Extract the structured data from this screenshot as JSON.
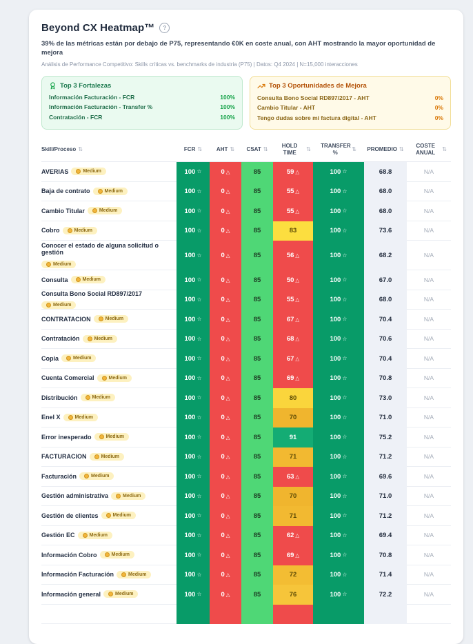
{
  "header": {
    "title": "Beyond CX Heatmap™",
    "help_icon": "?",
    "subtitle": "39% de las métricas están por debajo de P75, representando €0K en coste anual, con AHT mostrando la mayor oportunidad de mejora",
    "meta": "Análisis de Performance Competitivo: Skills críticas vs. benchmarks de industria (P75) | Datos: Q4 2024 | N=15,000 interacciones"
  },
  "strengths_panel": {
    "title": "Top 3 Fortalezas",
    "icon": "award-icon",
    "items": [
      {
        "label": "Información Facturación - FCR",
        "value": "100%"
      },
      {
        "label": "Información Facturación - Transfer %",
        "value": "100%"
      },
      {
        "label": "Contratación - FCR",
        "value": "100%"
      }
    ]
  },
  "opportunities_panel": {
    "title": "Top 3 Oportunidades de Mejora",
    "icon": "trending-up-icon",
    "items": [
      {
        "label": "Consulta Bono Social RD897/2017 - AHT",
        "value": "0%"
      },
      {
        "label": "Cambio Titular - AHT",
        "value": "0%"
      },
      {
        "label": "Tengo dudas sobre mi factura digital - AHT",
        "value": "0%"
      }
    ]
  },
  "table": {
    "columns": {
      "skill": "Skill/Proceso",
      "fcr": "FCR",
      "aht": "AHT",
      "csat": "CSAT",
      "hold": "HOLD TIME",
      "transfer": "TRANSFER %",
      "promedio": "PROMEDIO",
      "coste": "COSTE ANUAL"
    },
    "sort_icon": "⇅",
    "star_icon": "☆",
    "warn_icon": "△",
    "badge_label": "Medium",
    "colors": {
      "green_dark": "#089B68",
      "green_dark_fg": "#ffffff",
      "green_light": "#4FD776",
      "green_light_fg": "#1d3b24",
      "red": "#EF4B4B",
      "red_fg": "#ffffff",
      "yellow_fg": "#5C4A05",
      "promedio_bg": "#EEF1F7",
      "coste_bg": "#FFFFFF"
    },
    "rows": [
      {
        "skill": "AVERIAS",
        "fcr": "100",
        "aht": "0",
        "csat": "85",
        "hold": "59",
        "hold_bg": "#EF4B4B",
        "hold_fg": "#ffffff",
        "hold_warn": true,
        "transfer": "100",
        "promedio": "68.8",
        "coste": "N/A"
      },
      {
        "skill": "Baja de contrato",
        "fcr": "100",
        "aht": "0",
        "csat": "85",
        "hold": "55",
        "hold_bg": "#EF4B4B",
        "hold_fg": "#ffffff",
        "hold_warn": true,
        "transfer": "100",
        "promedio": "68.0",
        "coste": "N/A"
      },
      {
        "skill": "Cambio Titular",
        "fcr": "100",
        "aht": "0",
        "csat": "85",
        "hold": "55",
        "hold_bg": "#EF4B4B",
        "hold_fg": "#ffffff",
        "hold_warn": true,
        "transfer": "100",
        "promedio": "68.0",
        "coste": "N/A"
      },
      {
        "skill": "Cobro",
        "fcr": "100",
        "aht": "0",
        "csat": "85",
        "hold": "83",
        "hold_bg": "#FCDE3F",
        "hold_fg": "#5C4A05",
        "hold_warn": false,
        "transfer": "100",
        "promedio": "73.6",
        "coste": "N/A"
      },
      {
        "skill": "Conocer el estado de alguna solicitud o gestión",
        "tall": true,
        "fcr": "100",
        "aht": "0",
        "csat": "85",
        "hold": "56",
        "hold_bg": "#EF4B4B",
        "hold_fg": "#ffffff",
        "hold_warn": true,
        "transfer": "100",
        "promedio": "68.2",
        "coste": "N/A"
      },
      {
        "skill": "Consulta",
        "fcr": "100",
        "aht": "0",
        "csat": "85",
        "hold": "50",
        "hold_bg": "#EF4B4B",
        "hold_fg": "#ffffff",
        "hold_warn": true,
        "transfer": "100",
        "promedio": "67.0",
        "coste": "N/A"
      },
      {
        "skill": "Consulta Bono Social RD897/2017",
        "fcr": "100",
        "aht": "0",
        "csat": "85",
        "hold": "55",
        "hold_bg": "#EF4B4B",
        "hold_fg": "#ffffff",
        "hold_warn": true,
        "transfer": "100",
        "promedio": "68.0",
        "coste": "N/A"
      },
      {
        "skill": "CONTRATACION",
        "fcr": "100",
        "aht": "0",
        "csat": "85",
        "hold": "67",
        "hold_bg": "#EF4B4B",
        "hold_fg": "#ffffff",
        "hold_warn": true,
        "transfer": "100",
        "promedio": "70.4",
        "coste": "N/A"
      },
      {
        "skill": "Contratación",
        "fcr": "100",
        "aht": "0",
        "csat": "85",
        "hold": "68",
        "hold_bg": "#EF4B4B",
        "hold_fg": "#ffffff",
        "hold_warn": true,
        "transfer": "100",
        "promedio": "70.6",
        "coste": "N/A"
      },
      {
        "skill": "Copia",
        "fcr": "100",
        "aht": "0",
        "csat": "85",
        "hold": "67",
        "hold_bg": "#EF4B4B",
        "hold_fg": "#ffffff",
        "hold_warn": true,
        "transfer": "100",
        "promedio": "70.4",
        "coste": "N/A"
      },
      {
        "skill": "Cuenta Comercial",
        "fcr": "100",
        "aht": "0",
        "csat": "85",
        "hold": "69",
        "hold_bg": "#EF4B4B",
        "hold_fg": "#ffffff",
        "hold_warn": true,
        "transfer": "100",
        "promedio": "70.8",
        "coste": "N/A"
      },
      {
        "skill": "Distribución",
        "fcr": "100",
        "aht": "0",
        "csat": "85",
        "hold": "80",
        "hold_bg": "#FAD53C",
        "hold_fg": "#5C4A05",
        "hold_warn": false,
        "transfer": "100",
        "promedio": "73.0",
        "coste": "N/A"
      },
      {
        "skill": "Enel X",
        "fcr": "100",
        "aht": "0",
        "csat": "85",
        "hold": "70",
        "hold_bg": "#F0B52E",
        "hold_fg": "#5C4A05",
        "hold_warn": false,
        "transfer": "100",
        "promedio": "71.0",
        "coste": "N/A"
      },
      {
        "skill": "Error inesperado",
        "fcr": "100",
        "aht": "0",
        "csat": "85",
        "hold": "91",
        "hold_bg": "#14AC74",
        "hold_fg": "#ffffff",
        "hold_warn": false,
        "transfer": "100",
        "promedio": "75.2",
        "coste": "N/A"
      },
      {
        "skill": "FACTURACION",
        "fcr": "100",
        "aht": "0",
        "csat": "85",
        "hold": "71",
        "hold_bg": "#F2B931",
        "hold_fg": "#5C4A05",
        "hold_warn": false,
        "transfer": "100",
        "promedio": "71.2",
        "coste": "N/A"
      },
      {
        "skill": "Facturación",
        "fcr": "100",
        "aht": "0",
        "csat": "85",
        "hold": "63",
        "hold_bg": "#EF4B4B",
        "hold_fg": "#ffffff",
        "hold_warn": true,
        "transfer": "100",
        "promedio": "69.6",
        "coste": "N/A"
      },
      {
        "skill": "Gestión administrativa",
        "fcr": "100",
        "aht": "0",
        "csat": "85",
        "hold": "70",
        "hold_bg": "#F0B52E",
        "hold_fg": "#5C4A05",
        "hold_warn": false,
        "transfer": "100",
        "promedio": "71.0",
        "coste": "N/A"
      },
      {
        "skill": "Gestión de clientes",
        "fcr": "100",
        "aht": "0",
        "csat": "85",
        "hold": "71",
        "hold_bg": "#F2B931",
        "hold_fg": "#5C4A05",
        "hold_warn": false,
        "transfer": "100",
        "promedio": "71.2",
        "coste": "N/A"
      },
      {
        "skill": "Gestión EC",
        "fcr": "100",
        "aht": "0",
        "csat": "85",
        "hold": "62",
        "hold_bg": "#EF4B4B",
        "hold_fg": "#ffffff",
        "hold_warn": true,
        "transfer": "100",
        "promedio": "69.4",
        "coste": "N/A"
      },
      {
        "skill": "Información Cobro",
        "fcr": "100",
        "aht": "0",
        "csat": "85",
        "hold": "69",
        "hold_bg": "#EF4B4B",
        "hold_fg": "#ffffff",
        "hold_warn": true,
        "transfer": "100",
        "promedio": "70.8",
        "coste": "N/A"
      },
      {
        "skill": "Información Facturación",
        "fcr": "100",
        "aht": "0",
        "csat": "85",
        "hold": "72",
        "hold_bg": "#F3BD33",
        "hold_fg": "#5C4A05",
        "hold_warn": false,
        "transfer": "100",
        "promedio": "71.4",
        "coste": "N/A"
      },
      {
        "skill": "Información general",
        "fcr": "100",
        "aht": "0",
        "csat": "85",
        "hold": "76",
        "hold_bg": "#F6C53A",
        "hold_fg": "#5C4A05",
        "hold_warn": false,
        "transfer": "100",
        "promedio": "72.2",
        "coste": "N/A"
      },
      {
        "skill": "",
        "partial": true,
        "fcr": "",
        "aht": "",
        "csat": "",
        "hold": "",
        "hold_bg": "#EF4B4B",
        "hold_fg": "#ffffff",
        "hold_warn": false,
        "transfer": "",
        "promedio": "",
        "coste": ""
      }
    ]
  }
}
